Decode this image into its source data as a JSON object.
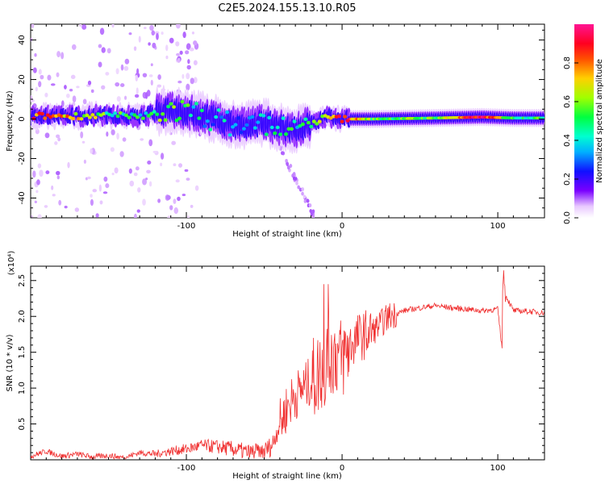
{
  "title": "C2E5.2024.155.13.10.R05",
  "chart_data": [
    {
      "type": "heatmap",
      "xlabel": "Height of straight line (km)",
      "ylabel": "Frequency (Hz)",
      "xlim": [
        -200,
        130
      ],
      "ylim": [
        -50,
        48
      ],
      "x_ticks": [
        -100,
        0,
        100
      ],
      "x_tick_labels": [
        "-100",
        "0",
        "100"
      ],
      "y_ticks": [
        -40,
        -20,
        0,
        20,
        40
      ],
      "y_tick_labels": [
        "-40",
        "-20",
        "0",
        "20",
        "40"
      ],
      "colorbar": {
        "label": "Normalized spectral amplitude",
        "range": [
          0,
          1
        ],
        "ticks": [
          0.0,
          0.2,
          0.4,
          0.6,
          0.8
        ],
        "tick_labels": [
          "0.0",
          "0.2",
          "0.4",
          "0.6",
          "0.8"
        ]
      },
      "ridge": [
        {
          "x": -190,
          "freq": 1.5,
          "amp": 0.8
        },
        {
          "x": -170,
          "freq": 1.5,
          "amp": 0.7
        },
        {
          "x": -150,
          "freq": 2.0,
          "amp": 0.5
        },
        {
          "x": -130,
          "freq": 1.0,
          "amp": 0.45
        },
        {
          "x": -110,
          "freq": 5.0,
          "amp": 0.6
        },
        {
          "x": -90,
          "freq": 2.0,
          "amp": 0.4
        },
        {
          "x": -70,
          "freq": -3.0,
          "amp": 0.35
        },
        {
          "x": -50,
          "freq": -2.0,
          "amp": 0.4
        },
        {
          "x": -30,
          "freq": -6.0,
          "amp": 0.45
        },
        {
          "x": -10,
          "freq": 1.0,
          "amp": 0.6
        },
        {
          "x": 0,
          "freq": 0.0,
          "amp": 0.95
        },
        {
          "x": 20,
          "freq": 0.0,
          "amp": 0.55
        },
        {
          "x": 60,
          "freq": 0.5,
          "amp": 0.55
        },
        {
          "x": 90,
          "freq": 1.0,
          "amp": 0.95
        },
        {
          "x": 110,
          "freq": 0.5,
          "amp": 0.5
        },
        {
          "x": 130,
          "freq": 0.5,
          "amp": 0.5
        }
      ]
    },
    {
      "type": "line",
      "series_name": "SNR",
      "xlabel": "Height of straight line (km)",
      "ylabel": "SNR (10 * v/v)",
      "multiplier_label": "(x10⁴)",
      "xlim": [
        -200,
        130
      ],
      "ylim": [
        0,
        2.7
      ],
      "x_ticks": [
        -100,
        0,
        100
      ],
      "x_tick_labels": [
        "-100",
        "0",
        "100"
      ],
      "y_ticks": [
        0.5,
        1.0,
        1.5,
        2.0,
        2.5
      ],
      "y_tick_labels": [
        "0.5",
        "1.0",
        "1.5",
        "2.0",
        "2.5"
      ],
      "color": "#f03030",
      "x": [
        -200,
        -190,
        -180,
        -170,
        -160,
        -150,
        -140,
        -130,
        -120,
        -110,
        -100,
        -90,
        -80,
        -70,
        -60,
        -50,
        -45,
        -40,
        -35,
        -30,
        -25,
        -20,
        -15,
        -10,
        -5,
        0,
        5,
        10,
        15,
        20,
        25,
        30,
        40,
        50,
        60,
        70,
        80,
        90,
        100,
        103,
        105,
        110,
        120,
        130
      ],
      "y": [
        0.05,
        0.12,
        0.05,
        0.08,
        0.04,
        0.06,
        0.03,
        0.1,
        0.08,
        0.12,
        0.15,
        0.2,
        0.18,
        0.15,
        0.1,
        0.12,
        0.2,
        0.5,
        0.75,
        0.9,
        1.0,
        1.1,
        1.2,
        1.35,
        1.5,
        1.4,
        1.6,
        1.7,
        1.75,
        1.8,
        1.9,
        2.0,
        2.08,
        2.12,
        2.15,
        2.12,
        2.1,
        2.08,
        2.1,
        1.5,
        2.3,
        2.08,
        2.07,
        2.05
      ]
    }
  ]
}
